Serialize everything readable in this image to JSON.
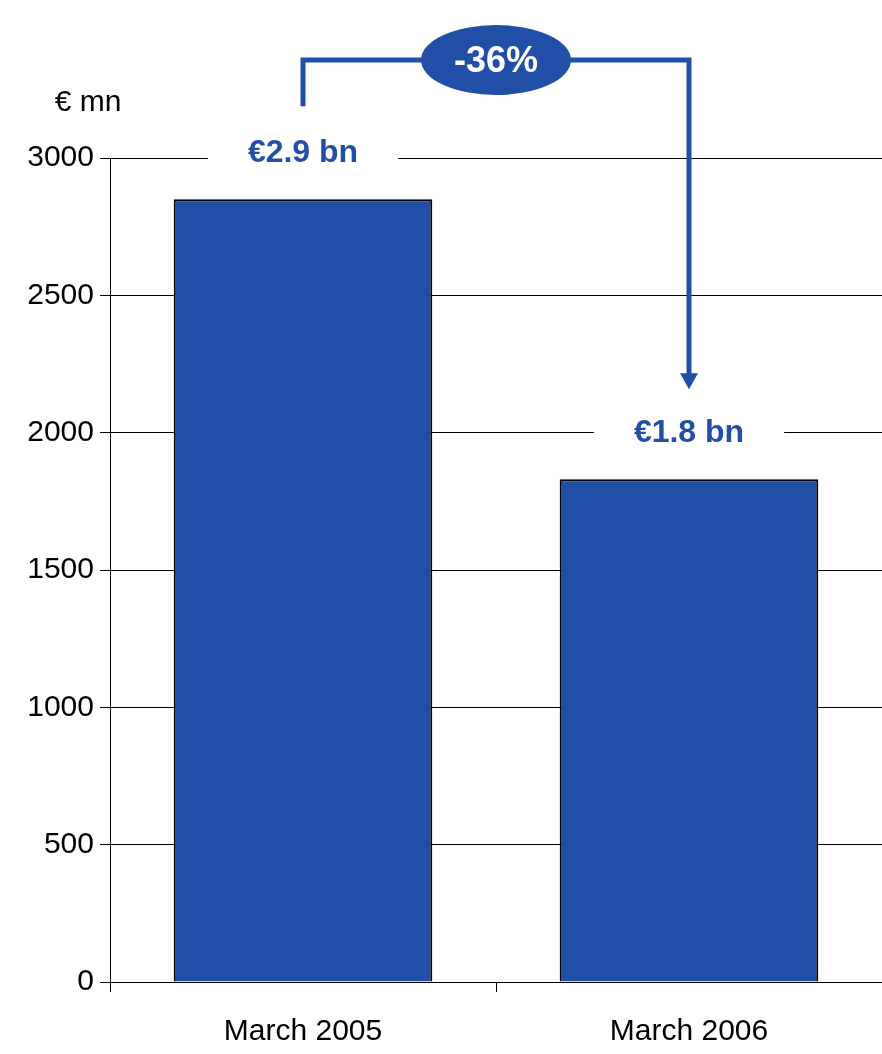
{
  "chart_data": {
    "type": "bar",
    "ylabel": "€ mn",
    "categories": [
      "March 2005",
      "March 2006"
    ],
    "values": [
      2850,
      1830
    ],
    "color": "#214ea7",
    "annotations": [
      "-36%",
      "€2.9 bn",
      "€1.8 bn"
    ],
    "ylim": [
      0,
      3000
    ],
    "yticks": [
      0,
      500,
      1000,
      1500,
      2000,
      2500,
      3000
    ],
    "grid": "y",
    "legend": false
  }
}
